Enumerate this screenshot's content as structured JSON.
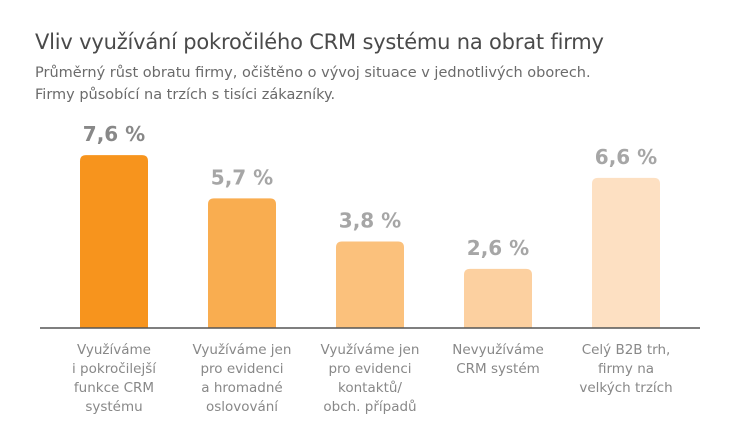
{
  "title": "Vliv využívání pokročilého CRM systému na obrat firmy",
  "subtitle": [
    "Průměrný růst obratu firmy, očištěno o vývoj situace v jednotlivých oborech.",
    "Firmy působící na trzích s tisíci zákazníky."
  ],
  "colors": {
    "bar_colors": [
      "#f7941d",
      "#f9ad50",
      "#fbc17c",
      "#fcd0a0",
      "#fde0c2"
    ],
    "value_label_colors": [
      "#888888",
      "#a6a6a6",
      "#a6a6a6",
      "#a6a6a6",
      "#a6a6a6"
    ],
    "axis": "#555555"
  },
  "chart_data": {
    "type": "bar",
    "categories": [
      "Využíváme i pokročilejší funkce CRM systému",
      "Využíváme jen pro evidenci a hromadné oslovování",
      "Využíváme jen pro evidenci kontaktů/ obch. případů",
      "Nevyužíváme CRM systém",
      "Celý B2B trh, firmy na velkých trzích"
    ],
    "category_lines": [
      [
        "Využíváme",
        "i pokročilejší",
        "funkce CRM",
        "systému"
      ],
      [
        "Využíváme jen",
        "pro evidenci",
        "a hromadné",
        "oslovování"
      ],
      [
        "Využíváme jen",
        "pro evidenci",
        "kontaktů/",
        "obch. případů"
      ],
      [
        "Nevyužíváme",
        "CRM systém"
      ],
      [
        "Celý B2B trh,",
        "firmy na",
        "velkých trzích"
      ]
    ],
    "values": [
      7.6,
      5.7,
      3.8,
      2.6,
      6.6
    ],
    "value_labels": [
      "7,6 %",
      "5,7 %",
      "3,8 %",
      "2,6 %",
      "6,6 %"
    ],
    "ylim": [
      0,
      8
    ],
    "grid": false,
    "legend": "none"
  }
}
